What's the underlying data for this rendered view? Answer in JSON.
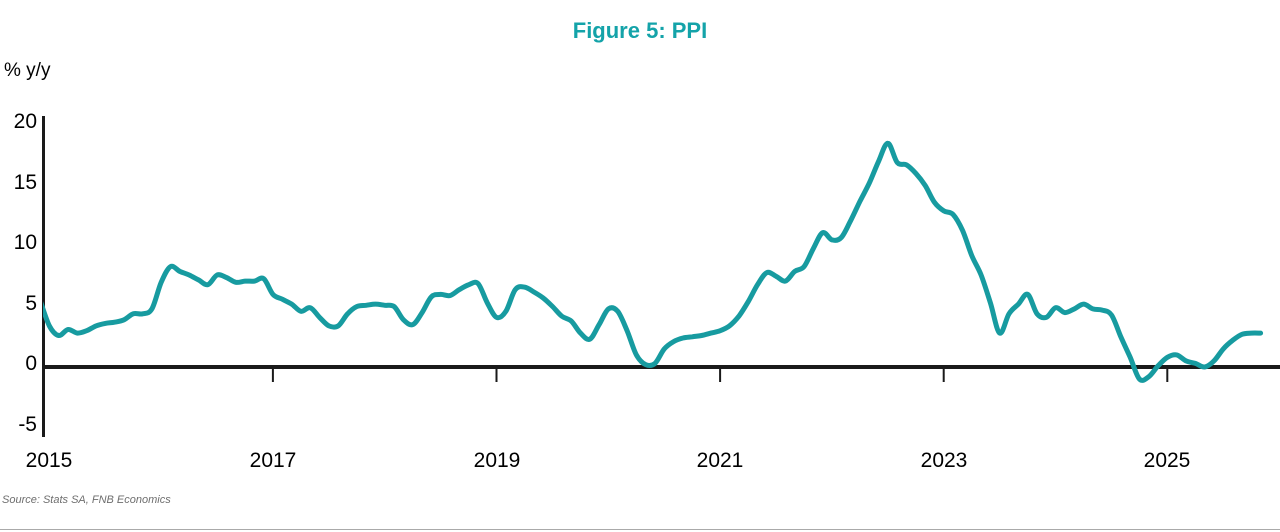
{
  "chart_data": {
    "type": "line",
    "title": "Figure 5: PPI",
    "ylabel": "% y/y",
    "source": "Source: Stats SA, FNB Economics",
    "x_tick_labels": [
      "2015",
      "2017",
      "2019",
      "2021",
      "2023",
      "2025"
    ],
    "y_tick_labels": [
      "20",
      "15",
      "10",
      "5",
      "0",
      "-5"
    ],
    "y_ticks": [
      20,
      15,
      10,
      5,
      0,
      -5
    ],
    "ylim": [
      -5,
      20
    ],
    "x_range": {
      "start": "2014-12",
      "end": "2025-11",
      "frequency": "monthly"
    },
    "grid": false,
    "legend": "none",
    "colors": {
      "line": "#179BA0",
      "title": "#14A3A9",
      "axis": "#1A1A1A",
      "source_text": "#6E6E6E"
    },
    "series": [
      {
        "name": "PPI % y/y",
        "values": [
          5.5,
          3.4,
          2.6,
          3.1,
          2.8,
          3.0,
          3.4,
          3.6,
          3.7,
          3.9,
          4.4,
          4.4,
          4.8,
          7.0,
          8.3,
          7.9,
          7.6,
          7.2,
          6.8,
          7.6,
          7.4,
          7.0,
          7.1,
          7.1,
          7.3,
          6.0,
          5.6,
          5.2,
          4.6,
          4.9,
          4.1,
          3.4,
          3.4,
          4.4,
          5.0,
          5.1,
          5.2,
          5.1,
          5.0,
          3.9,
          3.5,
          4.5,
          5.8,
          6.0,
          5.9,
          6.4,
          6.8,
          6.9,
          5.3,
          4.1,
          4.6,
          6.4,
          6.6,
          6.2,
          5.7,
          5.0,
          4.2,
          3.8,
          2.8,
          2.3,
          3.5,
          4.8,
          4.6,
          3.0,
          1.0,
          0.2,
          0.3,
          1.5,
          2.1,
          2.4,
          2.5,
          2.6,
          2.8,
          3.0,
          3.4,
          4.2,
          5.4,
          6.8,
          7.8,
          7.5,
          7.1,
          7.9,
          8.3,
          9.8,
          11.1,
          10.5,
          10.7,
          12.1,
          13.7,
          15.2,
          17.0,
          18.5,
          16.9,
          16.7,
          16.0,
          15.0,
          13.6,
          12.9,
          12.6,
          11.3,
          9.2,
          7.6,
          5.3,
          2.8,
          4.4,
          5.2,
          6.0,
          4.4,
          4.1,
          4.9,
          4.5,
          4.8,
          5.2,
          4.8,
          4.7,
          4.3,
          2.5,
          0.8,
          -1.0,
          -0.8,
          0.1,
          0.8,
          1.0,
          0.5,
          0.3,
          0.0,
          0.5,
          1.5,
          2.2,
          2.7,
          2.8,
          2.8
        ]
      }
    ]
  }
}
